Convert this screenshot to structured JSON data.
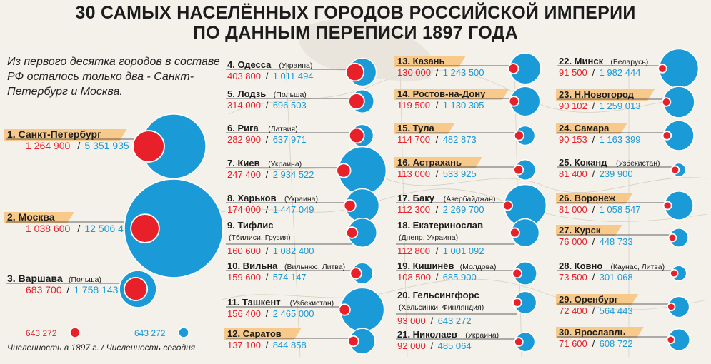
{
  "title_line1": "30 САМЫХ НАСЕЛЁННЫХ ГОРОДОВ РОССИЙСКОЙ ИМПЕРИИ",
  "title_line2": "ПО ДАННЫМ ПЕРЕПИСИ 1897 ГОДА",
  "note": "Из первого десятка городов в составе РФ осталось только два - Санкт-Петербург и Москва.",
  "legend": {
    "sample_value_red": "643 272",
    "sample_value_blue": "643 272",
    "caption": "Численность в 1897 г. / Численность сегодня"
  },
  "colors": {
    "pop_1897": "#e8202a",
    "pop_today": "#1a9ad6",
    "russia_label_bg": "#f7c98a",
    "text_dark": "#1c1c1c"
  },
  "chart_data": {
    "type": "bubble",
    "series": [
      {
        "name": "Численность в 1897 г.",
        "color": "#e8202a"
      },
      {
        "name": "Численность сегодня",
        "color": "#1a9ad6"
      }
    ],
    "cities": [
      {
        "rank": 1,
        "name": "Санкт-Петербург",
        "country": "",
        "in_russia": true,
        "pop1897": 1264900,
        "pop_today": 5351935,
        "pop1897_text": "1 264 900",
        "pop_today_text": "5 351 935"
      },
      {
        "rank": 2,
        "name": "Москва",
        "country": "",
        "in_russia": true,
        "pop1897": 1038600,
        "pop_today": 12506468,
        "pop1897_text": "1 038 600",
        "pop_today_text": "12 506 468"
      },
      {
        "rank": 3,
        "name": "Варшава",
        "country": "(Польша)",
        "in_russia": false,
        "pop1897": 683700,
        "pop_today": 1758143,
        "pop1897_text": "683 700",
        "pop_today_text": "1 758 143"
      },
      {
        "rank": 4,
        "name": "Одесса",
        "country": "(Украина)",
        "in_russia": false,
        "pop1897": 403800,
        "pop_today": 1011494,
        "pop1897_text": "403 800",
        "pop_today_text": "1 011 494"
      },
      {
        "rank": 5,
        "name": "Лодзь",
        "country": "(Польша)",
        "in_russia": false,
        "pop1897": 314000,
        "pop_today": 696503,
        "pop1897_text": "314 000",
        "pop_today_text": "696 503"
      },
      {
        "rank": 6,
        "name": "Рига",
        "country": "(Латвия)",
        "in_russia": false,
        "pop1897": 282900,
        "pop_today": 637971,
        "pop1897_text": "282 900",
        "pop_today_text": "637 971"
      },
      {
        "rank": 7,
        "name": "Киев",
        "country": "(Украина)",
        "in_russia": false,
        "pop1897": 247400,
        "pop_today": 2934522,
        "pop1897_text": "247 400",
        "pop_today_text": "2 934 522"
      },
      {
        "rank": 8,
        "name": "Харьков",
        "country": "(Украина)",
        "in_russia": false,
        "pop1897": 174000,
        "pop_today": 1447049,
        "pop1897_text": "174 000",
        "pop_today_text": "1 447 049"
      },
      {
        "rank": 9,
        "name": "Тифлис",
        "country": "(Тбилиси, Грузия)",
        "in_russia": false,
        "pop1897": 160600,
        "pop_today": 1082400,
        "pop1897_text": "160 600",
        "pop_today_text": "1 082 400"
      },
      {
        "rank": 10,
        "name": "Вильна",
        "country": "(Вильнюс, Литва)",
        "in_russia": false,
        "pop1897": 159600,
        "pop_today": 574147,
        "pop1897_text": "159 600",
        "pop_today_text": "574 147"
      },
      {
        "rank": 11,
        "name": "Ташкент",
        "country": "(Узбекистан)",
        "in_russia": false,
        "pop1897": 156400,
        "pop_today": 2465000,
        "pop1897_text": "156 400",
        "pop_today_text": "2 465 000"
      },
      {
        "rank": 12,
        "name": "Саратов",
        "country": "",
        "in_russia": true,
        "pop1897": 137100,
        "pop_today": 844858,
        "pop1897_text": "137 100",
        "pop_today_text": "844 858"
      },
      {
        "rank": 13,
        "name": "Казань",
        "country": "",
        "in_russia": true,
        "pop1897": 130000,
        "pop_today": 1243500,
        "pop1897_text": "130 000",
        "pop_today_text": "1 243 500"
      },
      {
        "rank": 14,
        "name": "Ростов-на-Дону",
        "country": "",
        "in_russia": true,
        "pop1897": 119500,
        "pop_today": 1130305,
        "pop1897_text": "119 500",
        "pop_today_text": "1 130 305"
      },
      {
        "rank": 15,
        "name": "Тула",
        "country": "",
        "in_russia": true,
        "pop1897": 114700,
        "pop_today": 482873,
        "pop1897_text": "114 700",
        "pop_today_text": "482 873"
      },
      {
        "rank": 16,
        "name": "Астрахань",
        "country": "",
        "in_russia": true,
        "pop1897": 113000,
        "pop_today": 533925,
        "pop1897_text": "113 000",
        "pop_today_text": "533 925"
      },
      {
        "rank": 17,
        "name": "Баку",
        "country": "(Азербайджан)",
        "in_russia": false,
        "pop1897": 112300,
        "pop_today": 2269700,
        "pop1897_text": "112 300",
        "pop_today_text": "2 269 700"
      },
      {
        "rank": 18,
        "name": "Екатеринослав",
        "country": "(Днепр, Украина)",
        "in_russia": false,
        "pop1897": 112800,
        "pop_today": 1001092,
        "pop1897_text": "112 800",
        "pop_today_text": "1 001 092"
      },
      {
        "rank": 19,
        "name": "Кишинёв",
        "country": "(Молдова)",
        "in_russia": false,
        "pop1897": 108500,
        "pop_today": 685900,
        "pop1897_text": "108 500",
        "pop_today_text": "685 900"
      },
      {
        "rank": 20,
        "name": "Гельсингфорс",
        "country": "(Хельсинки, Финляндия)",
        "in_russia": false,
        "pop1897": 93000,
        "pop_today": 643272,
        "pop1897_text": "93 000",
        "pop_today_text": "643 272"
      },
      {
        "rank": 21,
        "name": "Николаев",
        "country": "(Украина)",
        "in_russia": false,
        "pop1897": 92000,
        "pop_today": 485064,
        "pop1897_text": "92 000",
        "pop_today_text": "485 064"
      },
      {
        "rank": 22,
        "name": "Минск",
        "country": "(Беларусь)",
        "in_russia": false,
        "pop1897": 91500,
        "pop_today": 1982444,
        "pop1897_text": "91 500",
        "pop_today_text": "1 982 444"
      },
      {
        "rank": 23,
        "name": "Н.Новогород",
        "country": "",
        "in_russia": true,
        "pop1897": 90102,
        "pop_today": 1259013,
        "pop1897_text": "90 102",
        "pop_today_text": "1 259 013"
      },
      {
        "rank": 24,
        "name": "Самара",
        "country": "",
        "in_russia": true,
        "pop1897": 90153,
        "pop_today": 1163399,
        "pop1897_text": "90 153",
        "pop_today_text": "1 163 399"
      },
      {
        "rank": 25,
        "name": "Коканд",
        "country": "(Узбекистан)",
        "in_russia": false,
        "pop1897": 81400,
        "pop_today": 239900,
        "pop1897_text": "81 400",
        "pop_today_text": "239 900"
      },
      {
        "rank": 26,
        "name": "Воронеж",
        "country": "",
        "in_russia": true,
        "pop1897": 81000,
        "pop_today": 1058547,
        "pop1897_text": "81 000",
        "pop_today_text": "1 058 547"
      },
      {
        "rank": 27,
        "name": "Курск",
        "country": "",
        "in_russia": true,
        "pop1897": 76000,
        "pop_today": 448733,
        "pop1897_text": "76 000",
        "pop_today_text": "448 733"
      },
      {
        "rank": 28,
        "name": "Ковно",
        "country": "(Каунас, Литва)",
        "in_russia": false,
        "pop1897": 73500,
        "pop_today": 301068,
        "pop1897_text": "73 500",
        "pop_today_text": "301 068"
      },
      {
        "rank": 29,
        "name": "Оренбург",
        "country": "",
        "in_russia": true,
        "pop1897": 72400,
        "pop_today": 564443,
        "pop1897_text": "72 400",
        "pop_today_text": "564 443"
      },
      {
        "rank": 30,
        "name": "Ярославль",
        "country": "",
        "in_russia": true,
        "pop1897": 71600,
        "pop_today": 608722,
        "pop1897_text": "71 600",
        "pop_today_text": "608 722"
      }
    ]
  }
}
